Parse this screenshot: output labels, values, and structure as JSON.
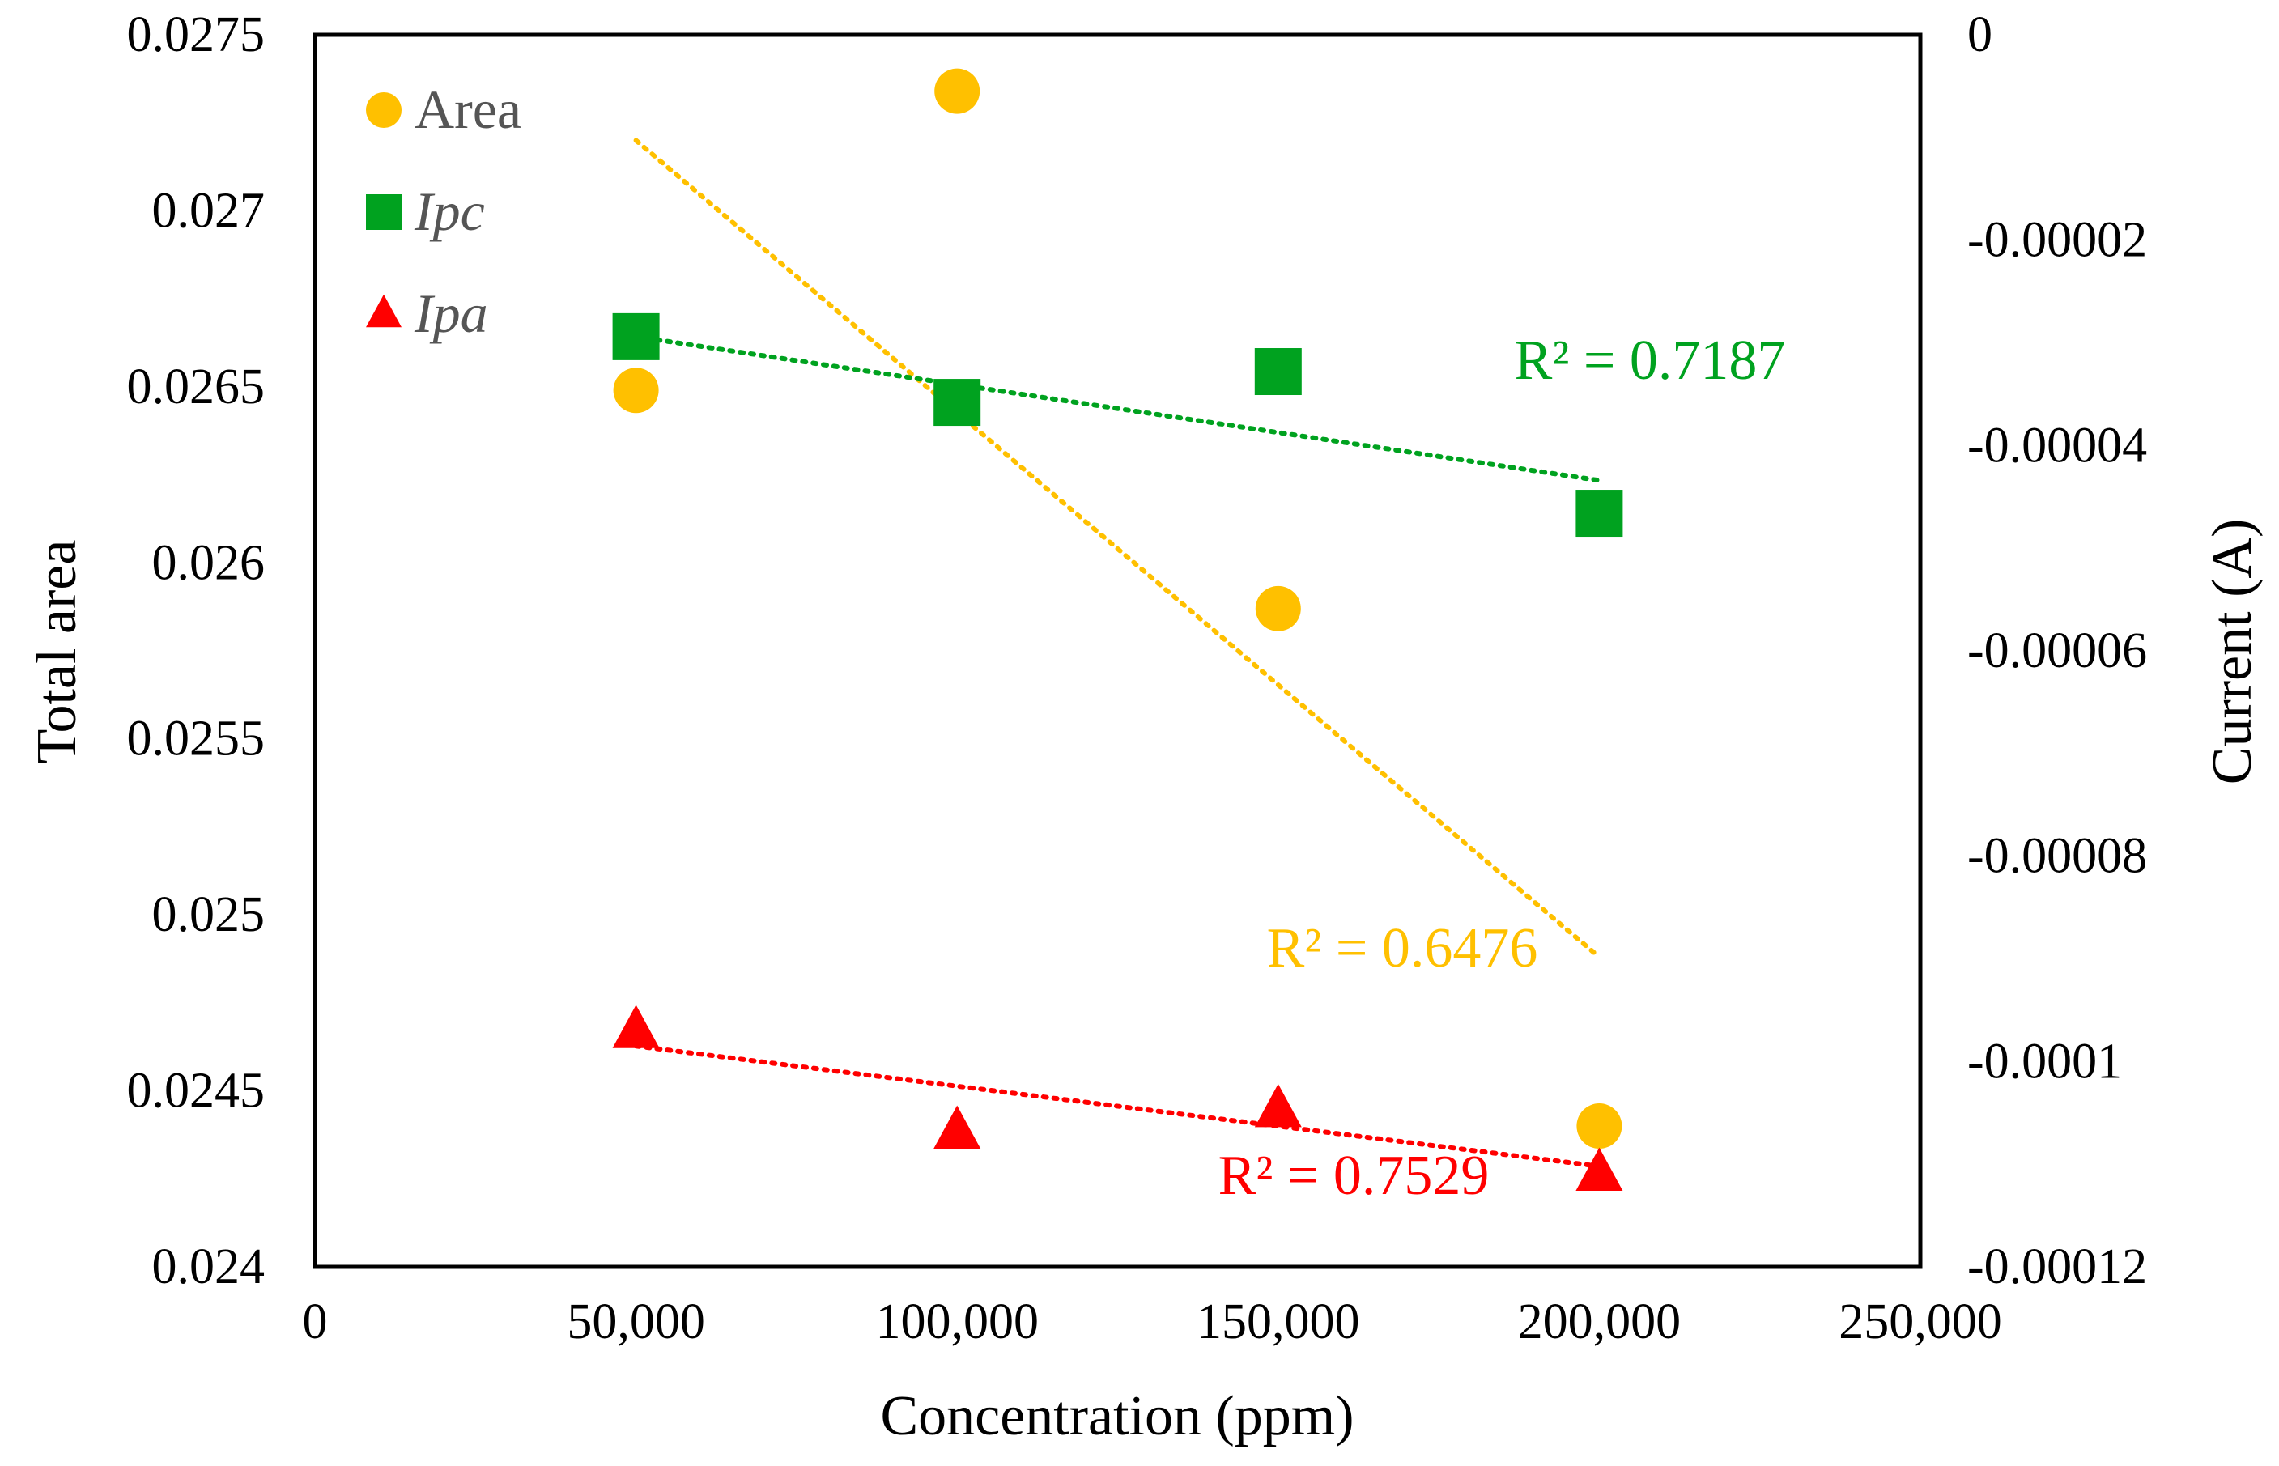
{
  "chart_data": {
    "type": "scatter",
    "xlabel": "Concentration (ppm)",
    "ylabel": "Total area",
    "y2label": "Current (A)",
    "xlim": [
      0,
      250000
    ],
    "ylim": [
      0.024,
      0.0275
    ],
    "y2lim": [
      -0.00012,
      0
    ],
    "x_ticks": [
      "0",
      "50,000",
      "100,000",
      "150,000",
      "200,000",
      "250,000"
    ],
    "y_ticks": [
      "0.024",
      "0.0245",
      "0.025",
      "0.0255",
      "0.026",
      "0.0265",
      "0.027",
      "0.0275"
    ],
    "y2_ticks": [
      "-0.00012",
      "-0.0001",
      "-0.00008",
      "-0.00006",
      "-0.00004",
      "-0.00002",
      "0"
    ],
    "grid": false,
    "legend_position": "top-left",
    "series": [
      {
        "name": "Area",
        "axis": "left",
        "marker": "circle",
        "color": "#FFC000",
        "x": [
          50000,
          100000,
          150000,
          200000
        ],
        "y": [
          0.02649,
          0.02734,
          0.02587,
          0.0244
        ],
        "trendline": {
          "x": [
            50000,
            200000
          ],
          "y": [
            0.0272,
            0.02488
          ]
        },
        "r2_label": "R² = 0.6476"
      },
      {
        "name": "Ipc",
        "axis": "right",
        "marker": "square",
        "color": "#00A21F",
        "x": [
          50000,
          100000,
          150000,
          200000
        ],
        "y": [
          -2.94e-05,
          -3.58e-05,
          -3.28e-05,
          -4.66e-05
        ],
        "trendline": {
          "x": [
            50000,
            200000
          ],
          "y": [
            -2.94e-05,
            -4.34e-05
          ]
        },
        "r2_label": "R² = 0.7187"
      },
      {
        "name": "Ipa",
        "axis": "right",
        "marker": "triangle",
        "color": "#FF0000",
        "x": [
          50000,
          100000,
          150000,
          200000
        ],
        "y": [
          -9.69e-05,
          -0.0001067,
          -0.0001046,
          -0.0001108
        ],
        "trendline": {
          "x": [
            50000,
            200000
          ],
          "y": [
            -9.85e-05,
            -0.0001102
          ]
        },
        "r2_label": "R² = 0.7529"
      }
    ]
  }
}
